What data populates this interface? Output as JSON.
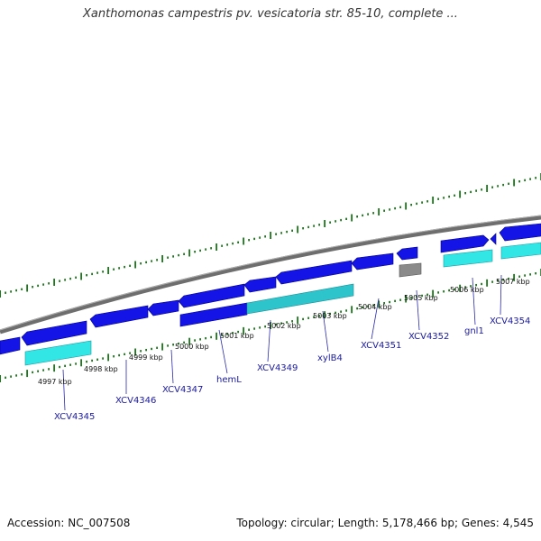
{
  "title": "Xanthomonas campestris pv. vesicatoria str. 85-10, complete ...",
  "footer": {
    "accession": "Accession: NC_007508",
    "stats": "Topology: circular; Length: 5,178,466 bp; Genes: 4,545"
  },
  "tick_labels": [
    "4997 kbp",
    "4998 kbp",
    "4999 kbp",
    "5000 kbp",
    "5001 kbp",
    "5002 kbp",
    "5003 kbp",
    "5004 kbp",
    "5005 kbp",
    "5006 kbp",
    "5007 kbp"
  ],
  "genes": [
    {
      "name": "XCV4345",
      "strand": "reverse"
    },
    {
      "name": "XCV4346",
      "strand": "reverse"
    },
    {
      "name": "XCV4347",
      "strand": "reverse"
    },
    {
      "name": "hemL",
      "strand": "forward"
    },
    {
      "name": "XCV4349",
      "strand": "reverse"
    },
    {
      "name": "xylB4",
      "strand": "reverse"
    },
    {
      "name": "XCV4351",
      "strand": "reverse"
    },
    {
      "name": "XCV4352",
      "strand": "reverse"
    },
    {
      "name": "gnl1",
      "strand": "forward"
    },
    {
      "name": "XCV4354",
      "strand": "forward"
    }
  ],
  "colors": {
    "cds": "#1414e6",
    "cds_dark": "#00008c",
    "match": "#33e6e6",
    "match_dark": "#1a9aa0",
    "backbone": "#7a7a7a",
    "tick": "#1a7a1a",
    "pseudo": "#888888"
  }
}
